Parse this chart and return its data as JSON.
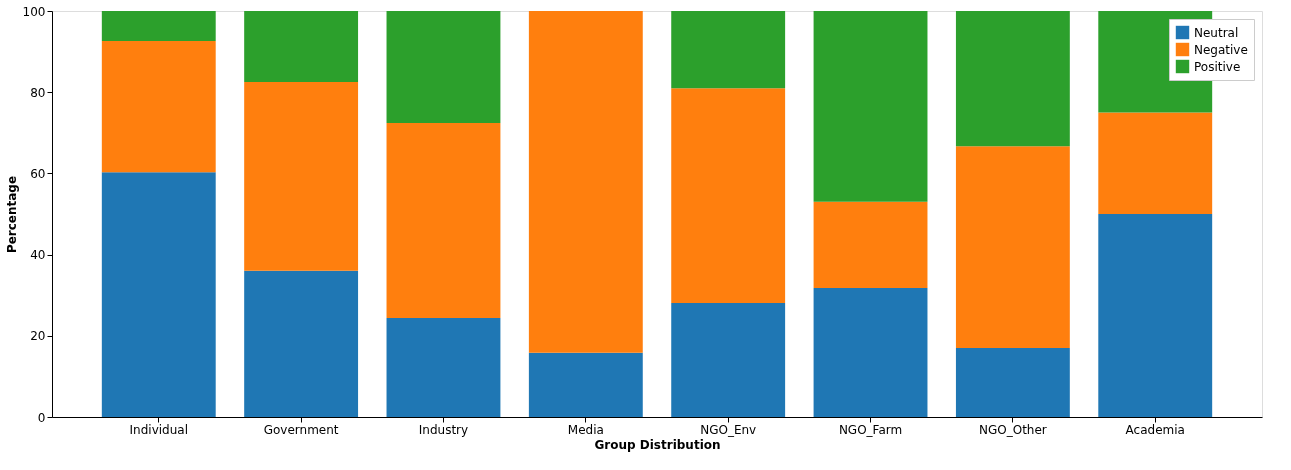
{
  "chart_data": {
    "type": "bar",
    "stacked": true,
    "xlabel": "Group Distribution",
    "ylabel": "Percentage",
    "categories": [
      "Individual",
      "Government",
      "Industry",
      "Media",
      "NGO_Env",
      "NGO_Farm",
      "NGO_Other",
      "Academia"
    ],
    "series": [
      {
        "name": "Neutral",
        "color": "#1f77b4",
        "values": [
          60.3,
          36.0,
          24.4,
          15.8,
          28.1,
          31.8,
          17.0,
          50.0
        ]
      },
      {
        "name": "Negative",
        "color": "#ff7f0e",
        "values": [
          32.3,
          46.5,
          48.0,
          84.2,
          52.9,
          21.2,
          49.7,
          25.0
        ]
      },
      {
        "name": "Positive",
        "color": "#2ca02c",
        "values": [
          7.4,
          17.5,
          27.6,
          0,
          19.0,
          47.0,
          33.3,
          25.0
        ]
      }
    ],
    "ylim": [
      0,
      100
    ],
    "yticks": [
      0,
      20,
      40,
      60,
      80,
      100
    ],
    "grid": false,
    "legend": "top right"
  }
}
